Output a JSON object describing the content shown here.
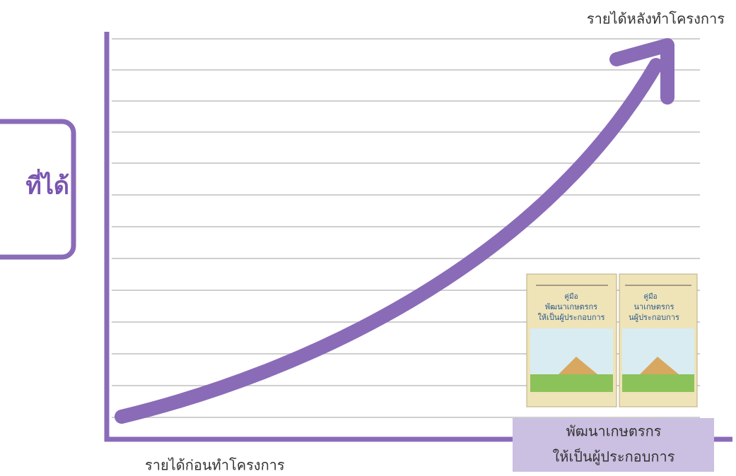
{
  "side_box": {
    "text": "ที่ได้"
  },
  "labels": {
    "after": "รายได้หลังทำโครงการ",
    "before": "รายได้ก่อนทำโครงการ"
  },
  "books": [
    {
      "lines": [
        "คู่มือ",
        "พัฒนาเกษตรกร",
        "ให้เป็นผู้ประกอบการ"
      ]
    },
    {
      "lines": [
        "คู่มือ",
        "นาเกษตรกร",
        "นผู้ประกอบการ"
      ]
    }
  ],
  "caption": {
    "lines": [
      "พัฒนาเกษตรกร",
      "ให้เป็นผู้ประกอบการ"
    ]
  }
}
